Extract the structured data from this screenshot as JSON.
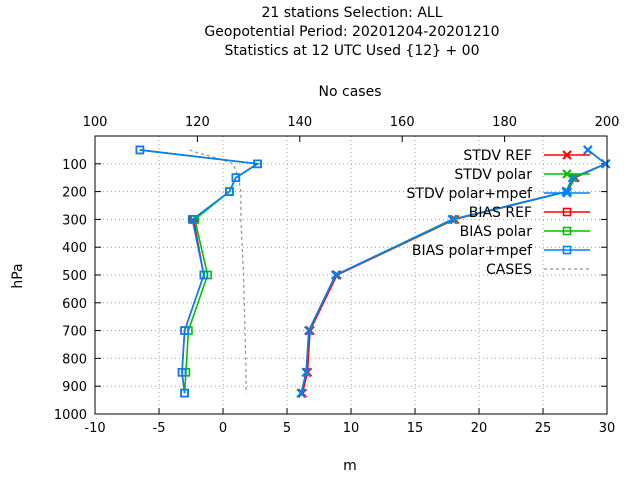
{
  "chart_data": {
    "type": "line",
    "title_lines": [
      "21 stations Selection: ALL",
      "Geopotential  Period: 20201204-20201210",
      "Statistics at 12 UTC  Used {12} + 00"
    ],
    "xlabel": "m",
    "ylabel": "hPa",
    "x2label": "No cases",
    "xlim": [
      -10,
      30
    ],
    "x2lim": [
      100,
      200
    ],
    "ylim": [
      1000,
      0
    ],
    "xticks": [
      "-10",
      "-5",
      "0",
      "5",
      "10",
      "15",
      "20",
      "25",
      "30"
    ],
    "x2ticks": [
      "100",
      "120",
      "140",
      "160",
      "180",
      "200"
    ],
    "yticks": [
      "100",
      "200",
      "300",
      "400",
      "500",
      "600",
      "700",
      "800",
      "900",
      "1000"
    ],
    "grid": true,
    "legend_position": "top-right",
    "series": [
      {
        "name": "STDV REF",
        "color": "#ff0000",
        "marker": "x",
        "axis": "x",
        "points": [
          [
            28.5,
            50
          ],
          [
            29.9,
            100
          ],
          [
            27.5,
            150
          ],
          [
            26.9,
            200
          ],
          [
            18.1,
            300
          ],
          [
            8.9,
            500
          ],
          [
            6.8,
            700
          ],
          [
            6.6,
            850
          ],
          [
            6.2,
            925
          ]
        ]
      },
      {
        "name": "STDV polar",
        "color": "#00c000",
        "marker": "x",
        "axis": "x",
        "points": [
          [
            28.5,
            50
          ],
          [
            29.9,
            100
          ],
          [
            27.4,
            150
          ],
          [
            26.9,
            200
          ],
          [
            18.0,
            300
          ],
          [
            8.8,
            500
          ],
          [
            6.7,
            700
          ],
          [
            6.5,
            850
          ],
          [
            6.1,
            925
          ]
        ]
      },
      {
        "name": "STDV polar+mpef",
        "color": "#0080ff",
        "marker": "x",
        "axis": "x",
        "points": [
          [
            28.5,
            50
          ],
          [
            29.9,
            100
          ],
          [
            27.3,
            150
          ],
          [
            26.8,
            200
          ],
          [
            17.9,
            300
          ],
          [
            8.8,
            500
          ],
          [
            6.7,
            700
          ],
          [
            6.5,
            850
          ],
          [
            6.1,
            925
          ]
        ]
      },
      {
        "name": "BIAS REF",
        "color": "#ff0000",
        "marker": "square",
        "axis": "x",
        "points": [
          [
            -6.5,
            50
          ],
          [
            2.7,
            100
          ],
          [
            1.0,
            150
          ],
          [
            0.5,
            200
          ],
          [
            -2.3,
            300
          ],
          [
            -1.5,
            500
          ],
          [
            -3.0,
            700
          ],
          [
            -3.2,
            850
          ],
          [
            -3.0,
            925
          ]
        ]
      },
      {
        "name": "BIAS polar",
        "color": "#00c000",
        "marker": "square",
        "axis": "x",
        "points": [
          [
            -6.5,
            50
          ],
          [
            2.7,
            100
          ],
          [
            1.0,
            150
          ],
          [
            0.5,
            200
          ],
          [
            -2.2,
            300
          ],
          [
            -1.2,
            500
          ],
          [
            -2.7,
            700
          ],
          [
            -2.9,
            850
          ],
          [
            -3.0,
            925
          ]
        ]
      },
      {
        "name": "BIAS polar+mpef",
        "color": "#0080ff",
        "marker": "square",
        "axis": "x",
        "points": [
          [
            -6.5,
            50
          ],
          [
            2.7,
            100
          ],
          [
            1.0,
            150
          ],
          [
            0.5,
            200
          ],
          [
            -2.4,
            300
          ],
          [
            -1.5,
            500
          ],
          [
            -3.0,
            700
          ],
          [
            -3.2,
            850
          ],
          [
            -3.0,
            925
          ]
        ]
      },
      {
        "name": "CASES",
        "color": "#909090",
        "marker": "none",
        "axis": "x2",
        "dashed": true,
        "points": [
          [
            118.5,
            50
          ],
          [
            120,
            60
          ],
          [
            124,
            80
          ],
          [
            127,
            100
          ],
          [
            128,
            150
          ],
          [
            128.5,
            200
          ],
          [
            128.5,
            300
          ],
          [
            129,
            500
          ],
          [
            129.3,
            700
          ],
          [
            129.5,
            850
          ],
          [
            129.5,
            925
          ]
        ]
      }
    ]
  }
}
